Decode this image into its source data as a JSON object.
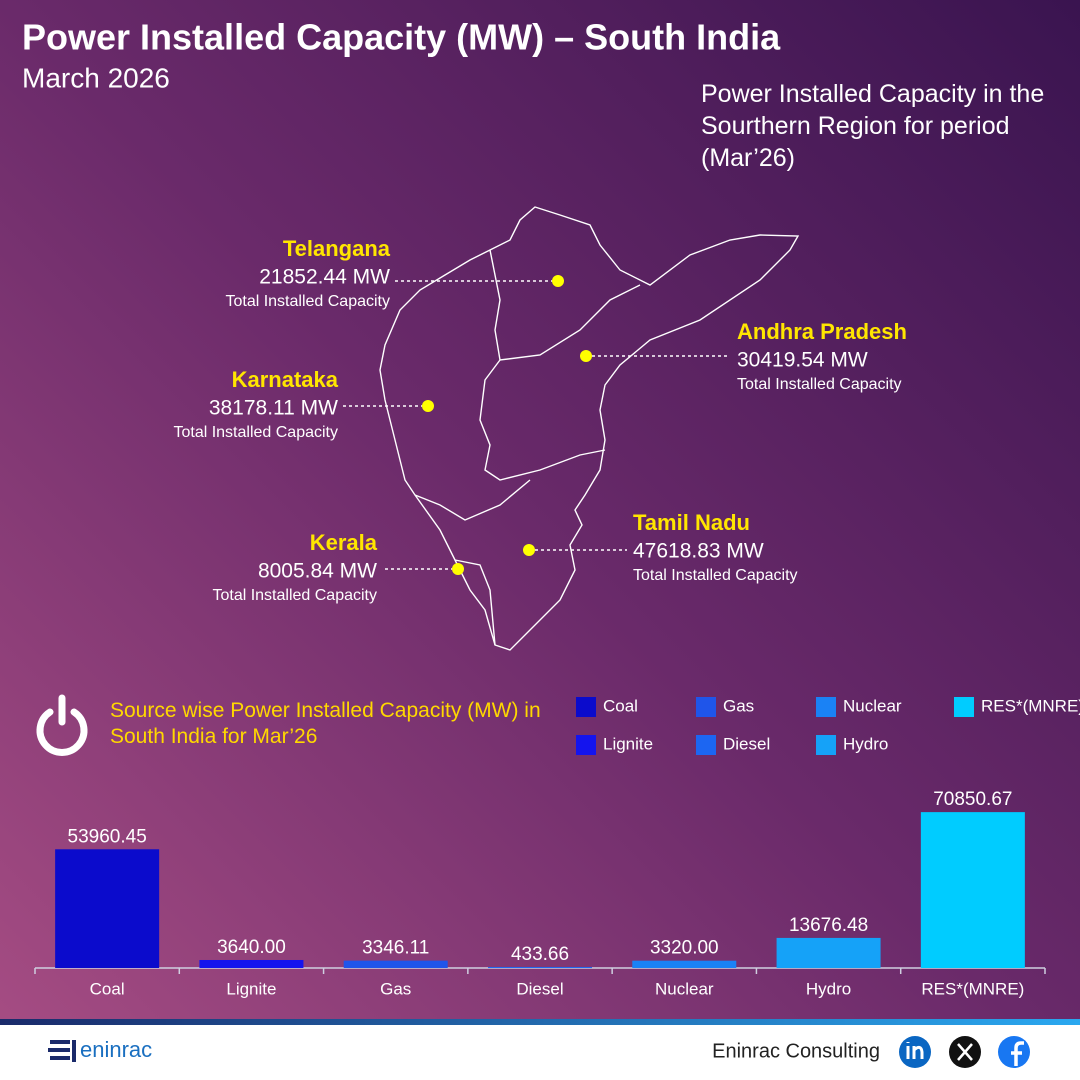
{
  "header": {
    "title": "Power Installed Capacity (MW) – South India",
    "subtitle": "March 2026",
    "note": "Power Installed Capacity in the Sourthern Region for period (Mar’26)"
  },
  "map": {
    "states": [
      {
        "name": "Telangana",
        "value": "21852.44 MW",
        "caption": "Total Installed Capacity"
      },
      {
        "name": "Andhra Pradesh",
        "value": "30419.54 MW",
        "caption": "Total Installed Capacity"
      },
      {
        "name": "Karnataka",
        "value": "38178.11 MW",
        "caption": "Total Installed Capacity"
      },
      {
        "name": "Kerala",
        "value": "8005.84 MW",
        "caption": "Total Installed Capacity"
      },
      {
        "name": "Tamil Nadu",
        "value": "47618.83 MW",
        "caption": "Total Installed Capacity"
      }
    ]
  },
  "chart_data": {
    "type": "bar",
    "title": "Source wise Power Installed Capacity (MW) in South India for Mar’26",
    "categories": [
      "Coal",
      "Lignite",
      "Gas",
      "Diesel",
      "Nuclear",
      "Hydro",
      "RES*(MNRE)"
    ],
    "values": [
      53960.45,
      3640,
      3346.11,
      433.66,
      3320,
      13676.48,
      70850.67
    ],
    "value_labels": [
      "53960.45",
      "3640.00",
      "3346.11",
      "433.66",
      "3320.00",
      "13676.48",
      "70850.67"
    ],
    "colors": [
      "#0b0bcc",
      "#1414ee",
      "#1f55ea",
      "#1c66f2",
      "#1a82f5",
      "#15a2f8",
      "#00ccff"
    ],
    "ylim": [
      0,
      80000
    ]
  },
  "footer": {
    "company": "Eninrac Consulting",
    "logo": "eninrac"
  }
}
